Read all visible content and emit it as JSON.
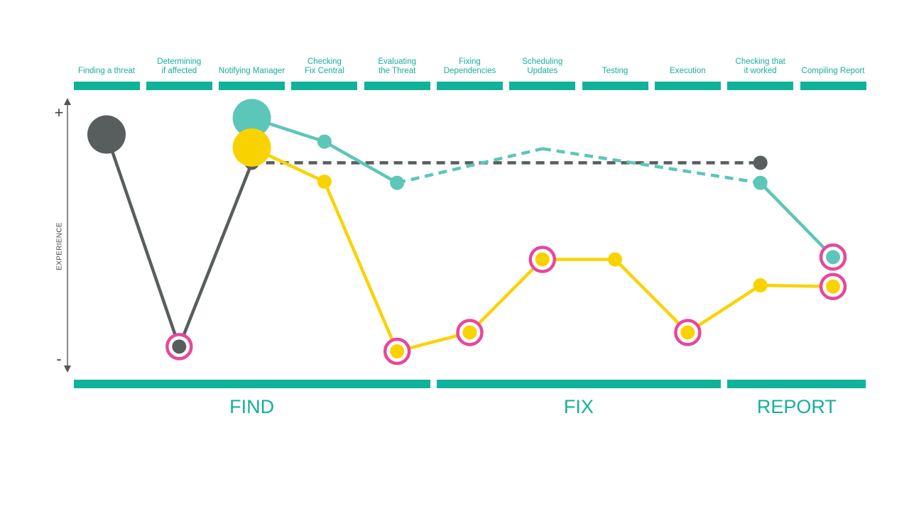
{
  "chart_data": {
    "type": "line",
    "stages": [
      {
        "label": "Finding a threat"
      },
      {
        "label": "Determining\nif affected"
      },
      {
        "label": "Notifying Manager"
      },
      {
        "label": "Checking\nFix Central"
      },
      {
        "label": "Evaluating\nthe Threat"
      },
      {
        "label": "Fixing\nDependencies"
      },
      {
        "label": "Scheduling\nUpdates"
      },
      {
        "label": "Testing"
      },
      {
        "label": "Execution"
      },
      {
        "label": "Checking that\nit worked"
      },
      {
        "label": "Compiling Report"
      }
    ],
    "phases": [
      {
        "label": "FIND",
        "start": 0,
        "end": 4
      },
      {
        "label": "FIX",
        "start": 5,
        "end": 8
      },
      {
        "label": "REPORT",
        "start": 9,
        "end": 10
      }
    ],
    "ylabel": "EXPERIENCE",
    "y_top_label": "+",
    "y_bottom_label": "-",
    "ylim": [
      -1,
      1
    ],
    "colors": {
      "dark": "#585e5e",
      "teal": "#5cc6b8",
      "yellow": "#f9d300",
      "pain": "#e8479b",
      "bar": "#10b29a"
    },
    "series": [
      {
        "color": "dark",
        "points": [
          {
            "stage": 0,
            "y": 0.84,
            "start": true
          },
          {
            "stage": 1,
            "y": -0.96,
            "pain": true
          },
          {
            "stage": 2,
            "y": 0.6
          },
          {
            "stage": 9,
            "y": 0.6,
            "dashed_from_prev": true
          }
        ]
      },
      {
        "color": "teal",
        "points": [
          {
            "stage": 2,
            "y": 0.98,
            "start": true
          },
          {
            "stage": 3,
            "y": 0.78
          },
          {
            "stage": 4,
            "y": 0.43
          },
          {
            "stage": 6,
            "y": 0.72,
            "hidden": true,
            "dashed_from_prev": true
          },
          {
            "stage": 9,
            "y": 0.43,
            "dashed_from_prev": true
          },
          {
            "stage": 10,
            "y": -0.2,
            "pain": true
          }
        ]
      },
      {
        "color": "yellow",
        "points": [
          {
            "stage": 2,
            "y": 0.73,
            "start": true
          },
          {
            "stage": 3,
            "y": 0.44
          },
          {
            "stage": 4,
            "y": -1.0,
            "pain": true
          },
          {
            "stage": 5,
            "y": -0.84,
            "pain": true
          },
          {
            "stage": 6,
            "y": -0.22,
            "pain": true
          },
          {
            "stage": 7,
            "y": -0.22
          },
          {
            "stage": 8,
            "y": -0.84,
            "pain": true
          },
          {
            "stage": 9,
            "y": -0.44
          },
          {
            "stage": 10,
            "y": -0.45,
            "pain": true
          }
        ]
      }
    ]
  }
}
